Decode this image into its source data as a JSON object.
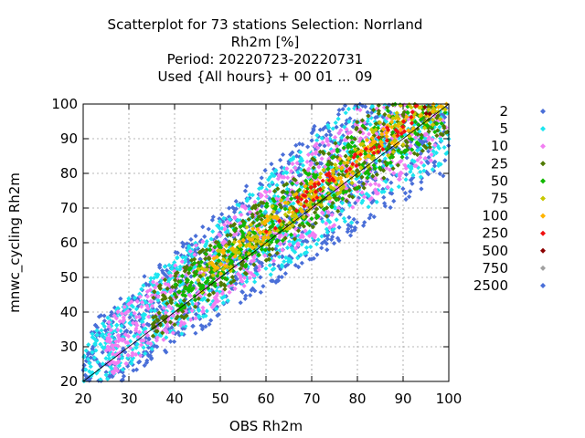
{
  "chart_data": {
    "type": "scatter",
    "title_lines": [
      "Scatterplot for   73 stations Selection: Norrland",
      "Rh2m [%]",
      "Period: 20220723-20220731",
      "Used {All hours} + 00 01 ... 09"
    ],
    "xlabel": "OBS Rh2m",
    "ylabel": "mnwc_cycling Rh2m",
    "xlim": [
      20,
      100
    ],
    "ylim": [
      20,
      100
    ],
    "x_ticks": [
      20,
      30,
      40,
      50,
      60,
      70,
      80,
      90,
      100
    ],
    "y_ticks": [
      20,
      30,
      40,
      50,
      60,
      70,
      80,
      90,
      100
    ],
    "grid": true,
    "reference_line": "y = x",
    "legend_placement": "right",
    "legend": [
      {
        "label": "2",
        "color": "#4a6fd8"
      },
      {
        "label": "5",
        "color": "#1de6f0"
      },
      {
        "label": "10",
        "color": "#f27ff2"
      },
      {
        "label": "25",
        "color": "#4f7a00"
      },
      {
        "label": "50",
        "color": "#10b800"
      },
      {
        "label": "75",
        "color": "#c8c800"
      },
      {
        "label": "100",
        "color": "#ffb400"
      },
      {
        "label": "250",
        "color": "#f01010"
      },
      {
        "label": "500",
        "color": "#8b0000"
      },
      {
        "label": "750",
        "color": "#a0a0a0"
      },
      {
        "label": "2500",
        "color": "#4a6fd8"
      }
    ],
    "density_bands": [
      {
        "class": "2",
        "x_range": [
          20,
          100
        ],
        "half_width": 24
      },
      {
        "class": "5",
        "x_range": [
          20,
          100
        ],
        "half_width": 20
      },
      {
        "class": "10",
        "x_range": [
          25,
          100
        ],
        "half_width": 17
      },
      {
        "class": "25",
        "x_range": [
          35,
          100
        ],
        "half_width": 13
      },
      {
        "class": "50",
        "x_range": [
          40,
          100
        ],
        "half_width": 10
      },
      {
        "class": "75",
        "x_range": [
          45,
          100
        ],
        "half_width": 7
      },
      {
        "class": "100",
        "x_range": [
          48,
          100
        ],
        "half_width": 5
      },
      {
        "class": "250",
        "x_range": [
          60,
          100
        ],
        "half_width": 3
      },
      {
        "class": "500",
        "x_range": [
          93,
          100
        ],
        "half_width": 3
      }
    ]
  }
}
